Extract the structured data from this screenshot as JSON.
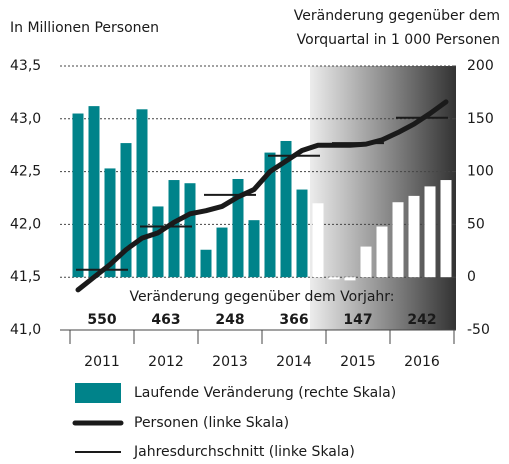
{
  "chart_data": {
    "type": "combo",
    "y_label": "In Millionen Personen",
    "y2_label": [
      "Veränderung gegenüber dem",
      "Vorquartal in 1 000 Personen"
    ],
    "categories": [
      "2011",
      "2012",
      "2013",
      "2014",
      "2015",
      "2016"
    ],
    "ylim": [
      41.0,
      43.5
    ],
    "yticks": [
      {
        "value": 41.0,
        "label": "41,0"
      },
      {
        "value": 41.5,
        "label": "41,5"
      },
      {
        "value": 42.0,
        "label": "42,0"
      },
      {
        "value": 42.5,
        "label": "42,5"
      },
      {
        "value": 43.0,
        "label": "43,0"
      },
      {
        "value": 43.5,
        "label": "43,5"
      }
    ],
    "y2lim": [
      -50,
      200
    ],
    "y2ticks": [
      -50,
      0,
      50,
      100,
      150,
      200
    ],
    "grid": true,
    "series": [
      {
        "name": "Laufende Veränderung (rechte Skala)",
        "kind": "bar",
        "axis": "y2",
        "color": "#00838a",
        "values": [
          [
            155,
            162,
            103,
            127
          ],
          [
            159,
            67,
            92,
            89
          ],
          [
            26,
            47,
            93,
            54
          ],
          [
            118,
            129,
            83,
            70
          ],
          [
            -2,
            -3,
            29,
            48
          ],
          [
            71,
            77,
            86,
            92
          ]
        ],
        "colors": [
          [
            "#00838a",
            "#00838a",
            "#00838a",
            "#00838a"
          ],
          [
            "#00838a",
            "#00838a",
            "#00838a",
            "#00838a"
          ],
          [
            "#00838a",
            "#00838a",
            "#00838a",
            "#00838a"
          ],
          [
            "#00838a",
            "#00838a",
            "#00838a",
            "#ffffff"
          ],
          [
            "#ffffff",
            "#ffffff",
            "#ffffff",
            "#ffffff"
          ],
          [
            "#ffffff",
            "#ffffff",
            "#ffffff",
            "#ffffff"
          ]
        ]
      },
      {
        "name": "Personen (linke Skala)",
        "kind": "line",
        "color": "#1a1a1a",
        "values": [
          [
            41.38,
            41.5,
            41.62,
            41.76
          ],
          [
            41.87,
            41.92,
            42.02,
            42.1
          ],
          [
            42.13,
            42.17,
            42.26,
            42.33
          ],
          [
            42.5,
            42.6,
            42.7,
            42.75
          ],
          [
            42.75,
            42.75,
            42.76,
            42.8
          ],
          [
            42.87,
            42.95,
            43.05,
            43.16
          ]
        ]
      },
      {
        "name": "Jahresdurchschnitt (linke Skala)",
        "kind": "average",
        "color": "#1a1a1a",
        "values": [
          41.57,
          41.98,
          42.28,
          42.65,
          42.77,
          43.01
        ]
      }
    ],
    "annual_change": {
      "title": "Veränderung gegenüber dem Vorjahr:",
      "values": [
        550,
        463,
        248,
        366,
        147,
        242
      ]
    }
  }
}
